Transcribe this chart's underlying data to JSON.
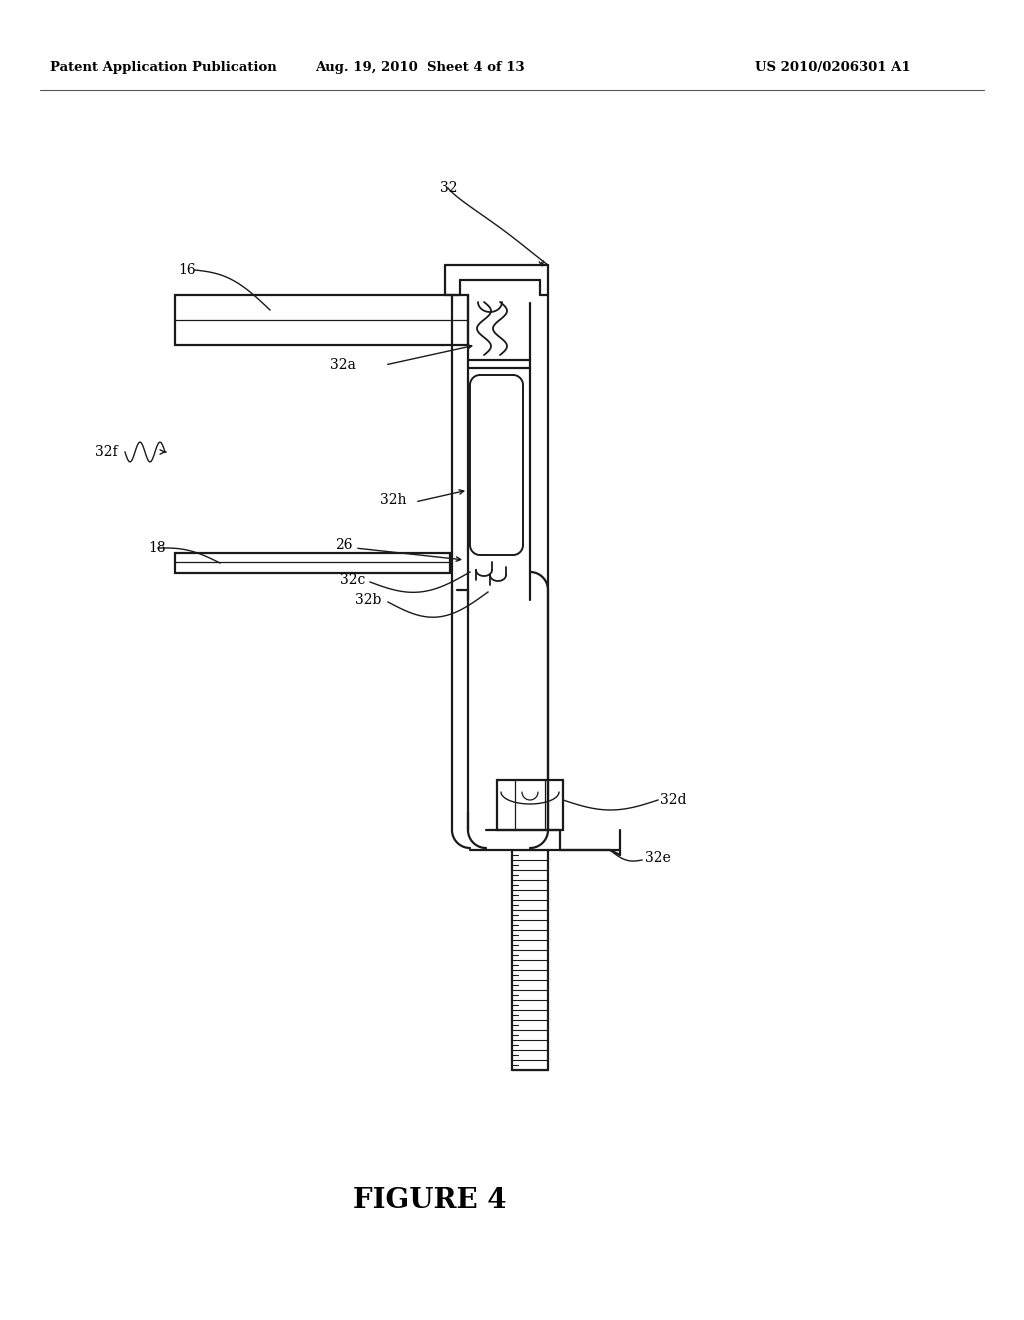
{
  "background_color": "#ffffff",
  "header_left": "Patent Application Publication",
  "header_mid": "Aug. 19, 2010  Sheet 4 of 13",
  "header_right": "US 2010/0206301 A1",
  "figure_label": "FIGURE 4",
  "line_color": "#1a1a1a",
  "line_width": 1.6
}
